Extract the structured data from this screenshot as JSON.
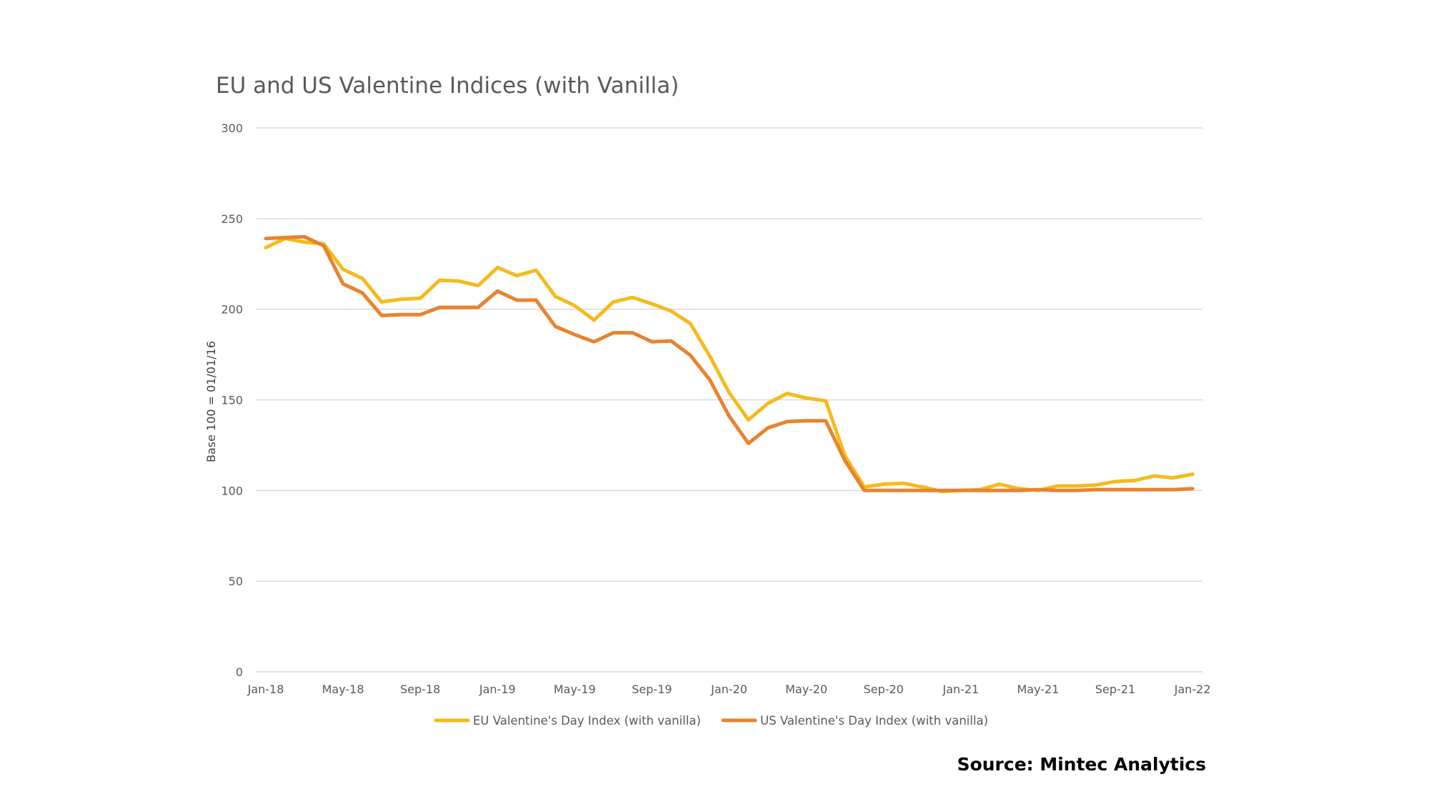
{
  "chart_data": {
    "type": "line",
    "title": "EU and US Valentine Indices (with Vanilla)",
    "ylabel": "Base 100 = 01/01/16",
    "xlabel": "",
    "ylim": [
      0,
      300
    ],
    "yticks": [
      0,
      50,
      100,
      150,
      200,
      250,
      300
    ],
    "grid": true,
    "legend_position": "bottom",
    "x": [
      "Jan-18",
      "Feb-18",
      "Mar-18",
      "Apr-18",
      "May-18",
      "Jun-18",
      "Jul-18",
      "Aug-18",
      "Sep-18",
      "Oct-18",
      "Nov-18",
      "Dec-18",
      "Jan-19",
      "Feb-19",
      "Mar-19",
      "Apr-19",
      "May-19",
      "Jun-19",
      "Jul-19",
      "Aug-19",
      "Sep-19",
      "Oct-19",
      "Nov-19",
      "Dec-19",
      "Jan-20",
      "Feb-20",
      "Mar-20",
      "Apr-20",
      "May-20",
      "Jun-20",
      "Jul-20",
      "Aug-20",
      "Sep-20",
      "Oct-20",
      "Nov-20",
      "Dec-20",
      "Jan-21",
      "Feb-21",
      "Mar-21",
      "Apr-21",
      "May-21",
      "Jun-21",
      "Jul-21",
      "Aug-21",
      "Sep-21",
      "Oct-21",
      "Nov-21",
      "Dec-21",
      "Jan-22"
    ],
    "x_tick_labels": [
      "Jan-18",
      "May-18",
      "Sep-18",
      "Jan-19",
      "May-19",
      "Sep-19",
      "Jan-20",
      "May-20",
      "Sep-20",
      "Jan-21",
      "May-21",
      "Sep-21",
      "Jan-22"
    ],
    "series": [
      {
        "name": "EU Valentine's Day Index (with vanilla)",
        "color": "#F5BA1C",
        "values": [
          234,
          239,
          237,
          236,
          222,
          217,
          204,
          205.5,
          206,
          216,
          215.5,
          213,
          223,
          218.5,
          221.5,
          207,
          202,
          194,
          204,
          206.5,
          203,
          199,
          192,
          174,
          154,
          139,
          148,
          153.5,
          151,
          149.5,
          119,
          102,
          103.5,
          104,
          102,
          99.5,
          100,
          100.5,
          103.5,
          101,
          100,
          102.5,
          102.5,
          103,
          105,
          105.5,
          108,
          107,
          109
        ]
      },
      {
        "name": "US Valentine's Day Index (with vanilla)",
        "color": "#E8832E",
        "values": [
          239,
          239.5,
          240,
          235,
          214,
          209,
          196.5,
          197,
          197,
          201,
          201,
          201,
          210,
          205,
          205,
          190.5,
          186,
          182,
          187,
          187,
          182,
          182.5,
          174.5,
          161,
          141,
          126,
          134.5,
          138,
          138.5,
          138.5,
          116.5,
          100,
          100,
          100,
          100,
          100,
          100,
          100,
          100,
          100,
          100.5,
          100,
          100,
          100.5,
          100.5,
          100.5,
          100.5,
          100.5,
          101
        ]
      }
    ]
  },
  "source": "Source: Mintec Analytics"
}
